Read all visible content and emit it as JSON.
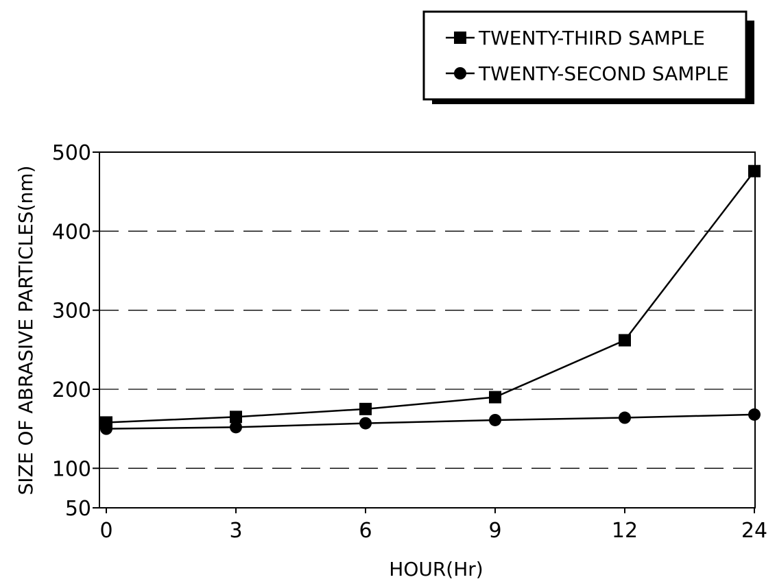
{
  "chart_data": {
    "type": "line",
    "categories": [
      "0",
      "3",
      "6",
      "9",
      "12",
      "24"
    ],
    "xlabel": "HOUR(Hr)",
    "ylabel": "SIZE OF ABRASIVE PARTICLES(nm)",
    "ylim": [
      50,
      500
    ],
    "yticks": [
      50,
      100,
      200,
      300,
      400,
      500
    ],
    "grid": "dashed horizontal",
    "legend_position": "top-right",
    "series": [
      {
        "name": "TWENTY-THIRD SAMPLE",
        "marker": "square",
        "values": [
          158,
          165,
          175,
          190,
          262,
          476
        ]
      },
      {
        "name": "TWENTY-SECOND SAMPLE",
        "marker": "circle",
        "values": [
          150,
          152,
          157,
          161,
          164,
          168
        ]
      }
    ]
  }
}
